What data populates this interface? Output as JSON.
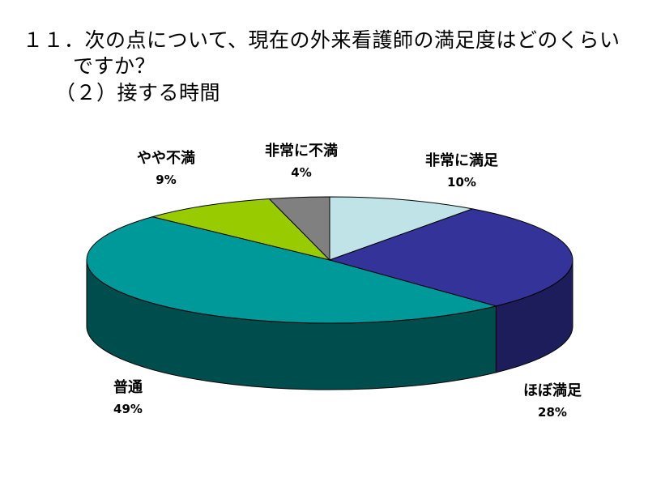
{
  "title": {
    "line1": "１１．次の点について、現在の外来看護師の満足度はどのくらい",
    "line2": "ですか？",
    "line3": "（２）接する時間"
  },
  "chart_data": {
    "type": "pie",
    "three_d": true,
    "slices": [
      {
        "label": "非常に満足",
        "percent_label": "10%",
        "value": 10,
        "color": "#bfe3e6",
        "side_color": "#8fb3b6"
      },
      {
        "label": "ほぼ満足",
        "percent_label": "28%",
        "value": 28,
        "color": "#333399",
        "side_color": "#1d1d5c"
      },
      {
        "label": "普通",
        "percent_label": "49%",
        "value": 49,
        "color": "#009999",
        "side_color": "#004d4d"
      },
      {
        "label": "やや不満",
        "percent_label": "9%",
        "value": 9,
        "color": "#99cc00",
        "side_color": "#5c7a00"
      },
      {
        "label": "非常に不満",
        "percent_label": "4%",
        "value": 4,
        "color": "#808080",
        "side_color": "#4d4d4d"
      }
    ]
  }
}
